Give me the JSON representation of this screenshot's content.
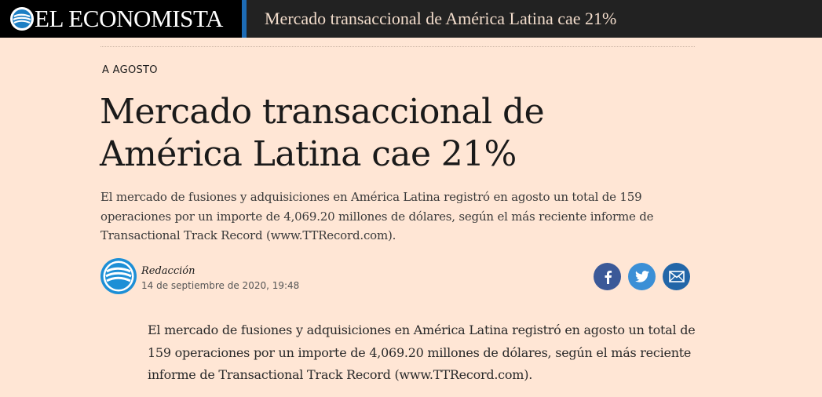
{
  "header": {
    "brand_name": "EL ECONOMISTA",
    "logo_icon": "el-economista-logo-icon",
    "title": "Mercado transaccional de América Latina cae 21%",
    "bar_color": "#222222",
    "brand_bg": "#000000",
    "accent_color": "#1d6bb5"
  },
  "article": {
    "kicker": "A AGOSTO",
    "headline_line1": "Mercado transaccional de",
    "headline_line2": "América Latina cae 21%",
    "summary": "El mercado de fusiones y adquisiciones en América Latina registró en agosto un total de 159 operaciones por un importe de 4,069.20 millones de dólares, según el más reciente informe de Transactional Track Record (www.TTRecord.com).",
    "byline": {
      "avatar_icon": "el-economista-avatar-icon",
      "author": "Redacción",
      "date": "14 de septiembre de 2020, 19:48"
    },
    "share": [
      {
        "icon": "facebook-icon",
        "color": "#3b5998"
      },
      {
        "icon": "twitter-icon",
        "color": "#3b8fd6"
      },
      {
        "icon": "mail-icon",
        "color": "#2266a8"
      }
    ],
    "body": "El mercado de fusiones y adquisiciones en América Latina registró en agosto un total de 159 operaciones por un importe de 4,069.20 millones de dólares, según el más reciente informe de Transactional Track Record (www.TTRecord.com)."
  },
  "page_bg": "#ffe6d5"
}
